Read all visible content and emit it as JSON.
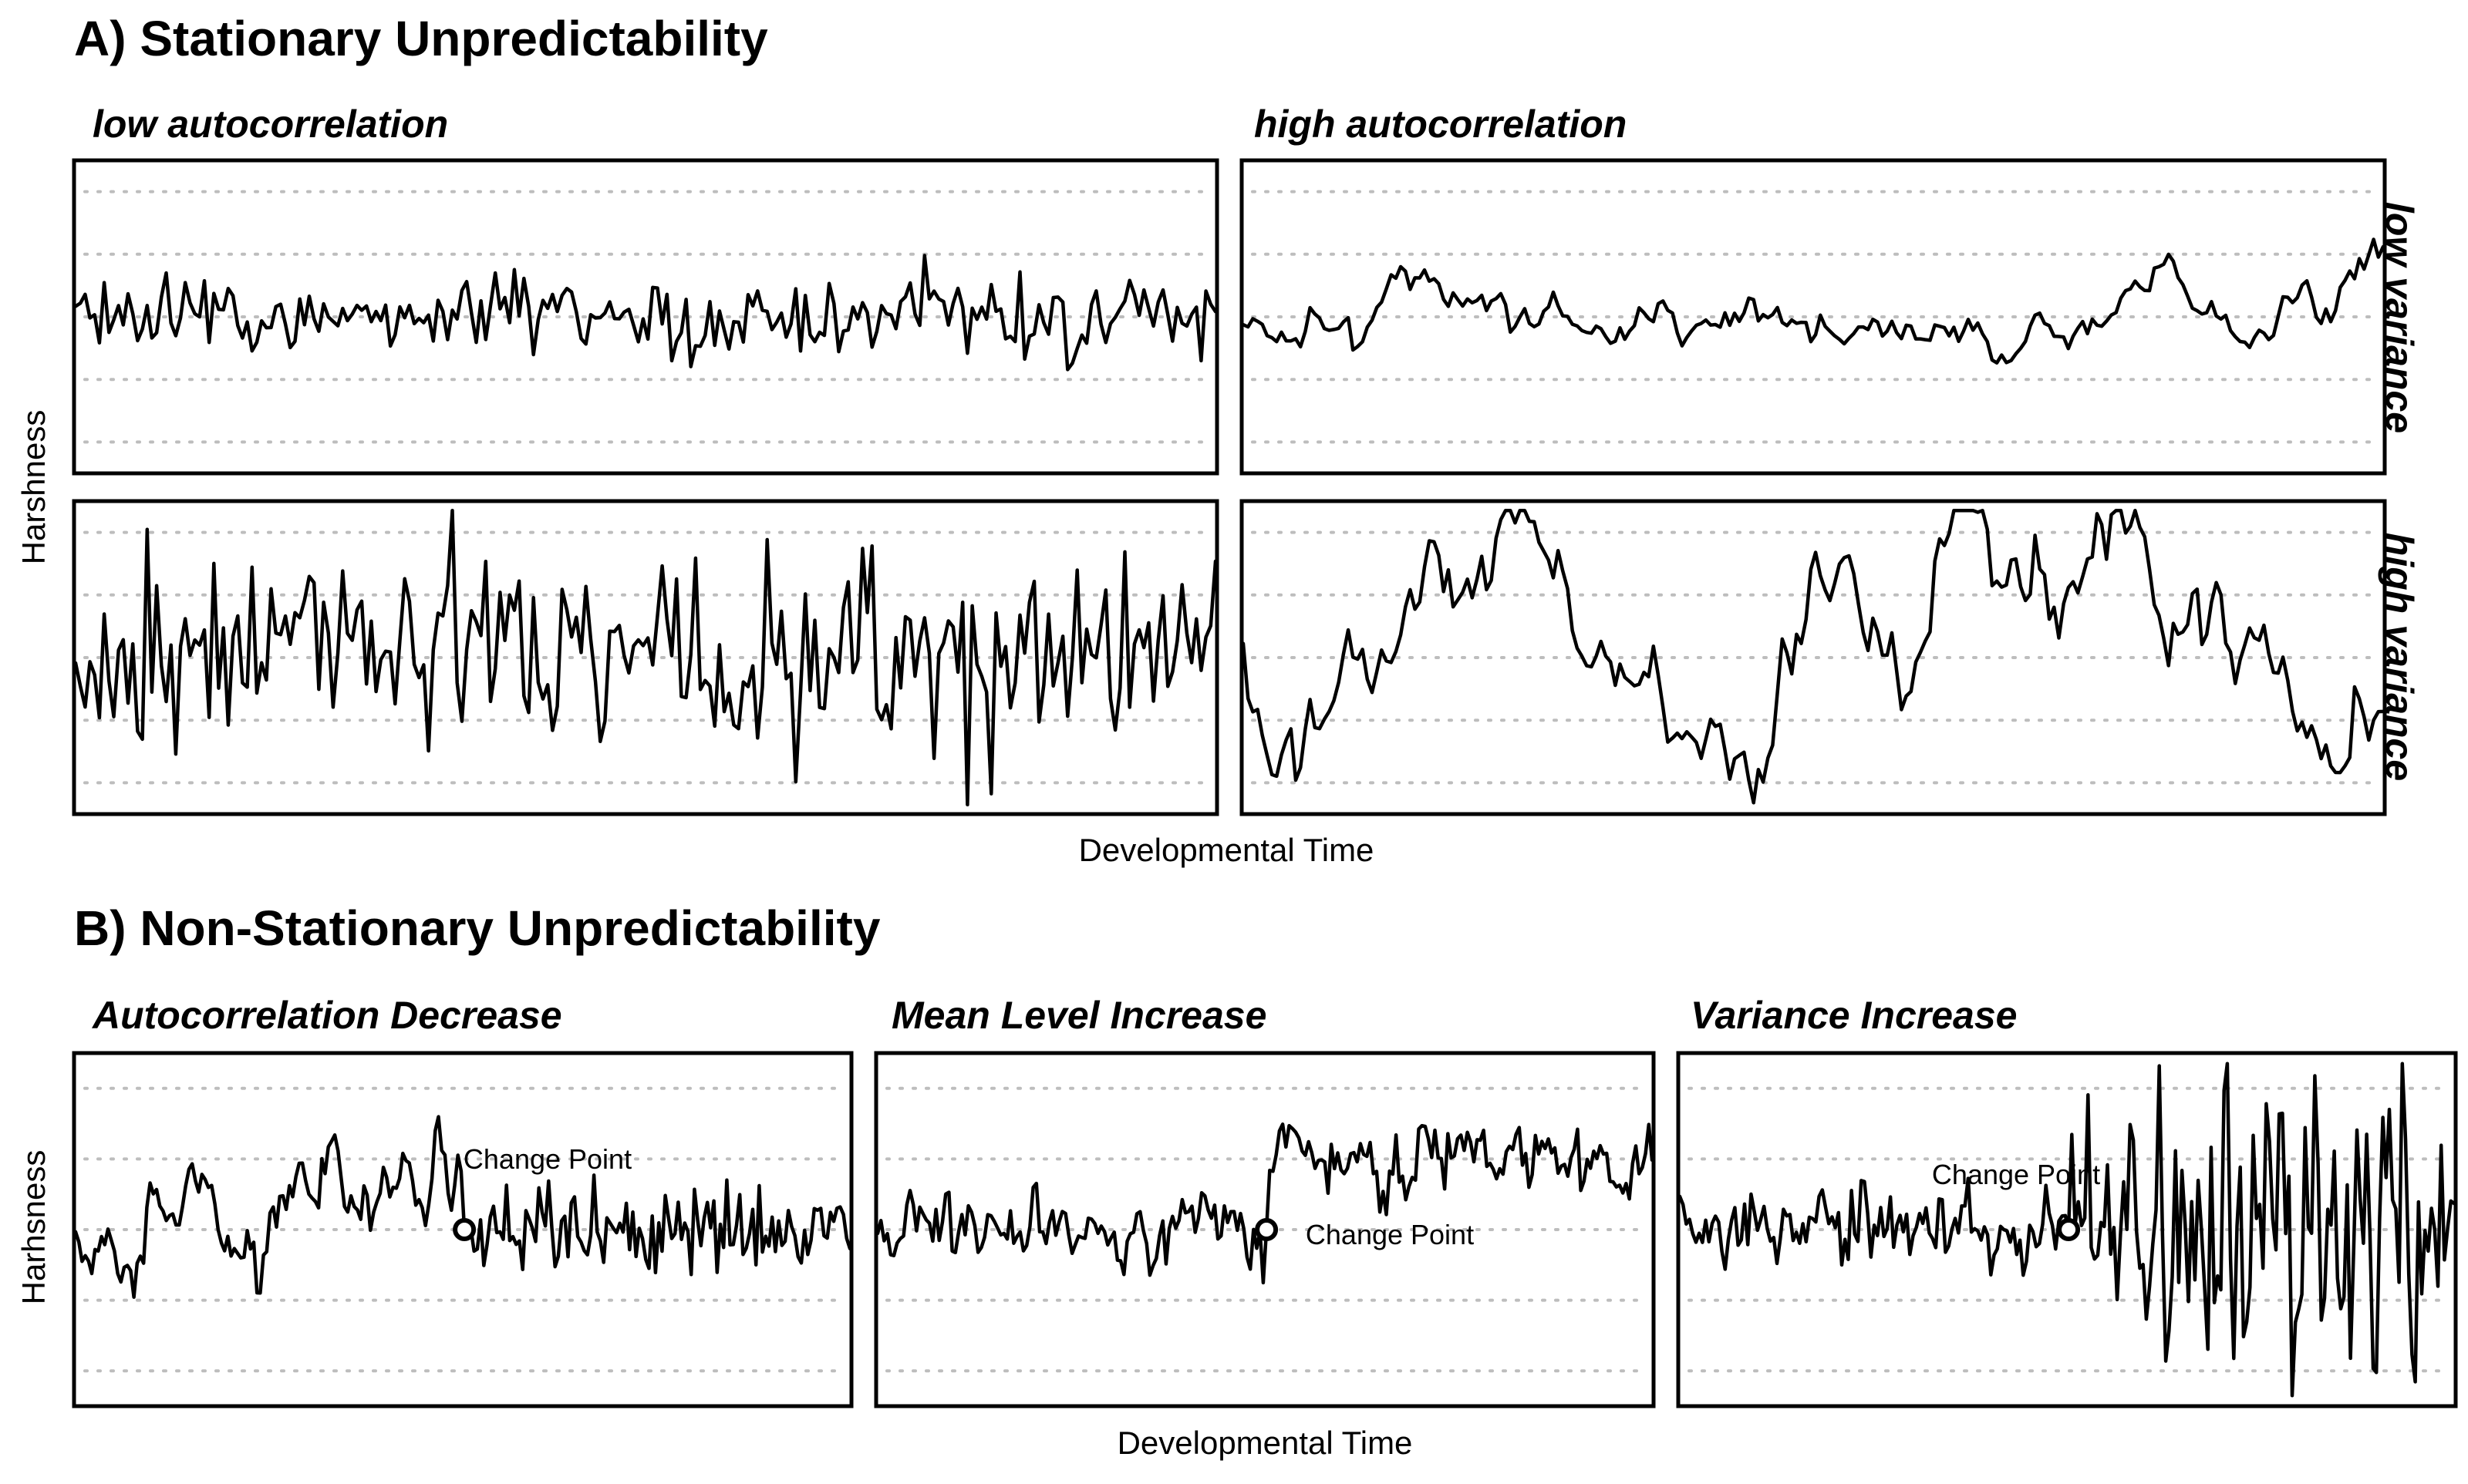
{
  "section_a": {
    "title": "A) Stationary Unpredictability",
    "col_labels": [
      "low autocorrelation",
      "high autocorrelation"
    ],
    "row_labels": [
      "low variance",
      "high variance"
    ],
    "ylabel": "Harshness",
    "xlabel": "Developmental Time"
  },
  "section_b": {
    "title": "B) Non-Stationary Unpredictability",
    "panel_titles": [
      "Autocorrelation Decrease",
      "Mean Level Increase",
      "Variance Increase"
    ],
    "ylabel": "Harhsness",
    "xlabel": "Developmental Time",
    "annotation": "Change Point"
  },
  "chart_data": [
    {
      "type": "line",
      "panel": "low autocorrelation / low variance",
      "n": 240,
      "mean": 0,
      "sd": 0.33,
      "autocorrelation": 0.0,
      "ylim": [
        -2.5,
        2.5
      ],
      "grid": "horizontal dotted",
      "axis_ticks": false
    },
    {
      "type": "line",
      "panel": "high autocorrelation / low variance",
      "n": 240,
      "mean": 0,
      "sd": 0.4,
      "autocorrelation": 0.92,
      "ylim": [
        -2.5,
        2.5
      ],
      "grid": "horizontal dotted",
      "axis_ticks": false
    },
    {
      "type": "line",
      "panel": "low autocorrelation / high variance",
      "n": 240,
      "mean": 0,
      "sd": 0.85,
      "autocorrelation": 0.0,
      "ylim": [
        -2.5,
        2.5
      ],
      "grid": "horizontal dotted",
      "axis_ticks": false
    },
    {
      "type": "line",
      "panel": "high autocorrelation / high variance",
      "n": 240,
      "mean": 0,
      "sd": 1.2,
      "autocorrelation": 0.95,
      "ylim": [
        -2.5,
        2.5
      ],
      "grid": "horizontal dotted",
      "axis_ticks": false
    },
    {
      "type": "line",
      "panel": "Autocorrelation Decrease",
      "n": 240,
      "change_point_index": 120,
      "before": {
        "mean": 0,
        "sd": 0.55,
        "autocorrelation": 0.88
      },
      "after": {
        "mean": 0,
        "sd": 0.3,
        "autocorrelation": 0.0
      },
      "change_point_value": 0.0,
      "ylim": [
        -2.5,
        2.5
      ],
      "grid": "horizontal dotted",
      "axis_ticks": false
    },
    {
      "type": "line",
      "panel": "Mean Level Increase",
      "n": 240,
      "change_point_index": 120,
      "before": {
        "mean": 0,
        "sd": 0.3,
        "autocorrelation": 0.5
      },
      "after": {
        "mean": 1.0,
        "sd": 0.3,
        "autocorrelation": 0.5
      },
      "change_point_value": 0.0,
      "ylim": [
        -2.5,
        2.5
      ],
      "grid": "horizontal dotted",
      "axis_ticks": false
    },
    {
      "type": "line",
      "panel": "Variance Increase",
      "n": 240,
      "change_point_index": 120,
      "before": {
        "mean": 0,
        "sd": 0.3,
        "autocorrelation": 0.2
      },
      "after": {
        "mean": 0,
        "sd": 1.05,
        "autocorrelation": 0.2
      },
      "change_point_value": 0.0,
      "ylim": [
        -2.5,
        2.5
      ],
      "grid": "horizontal dotted",
      "axis_ticks": false
    }
  ]
}
